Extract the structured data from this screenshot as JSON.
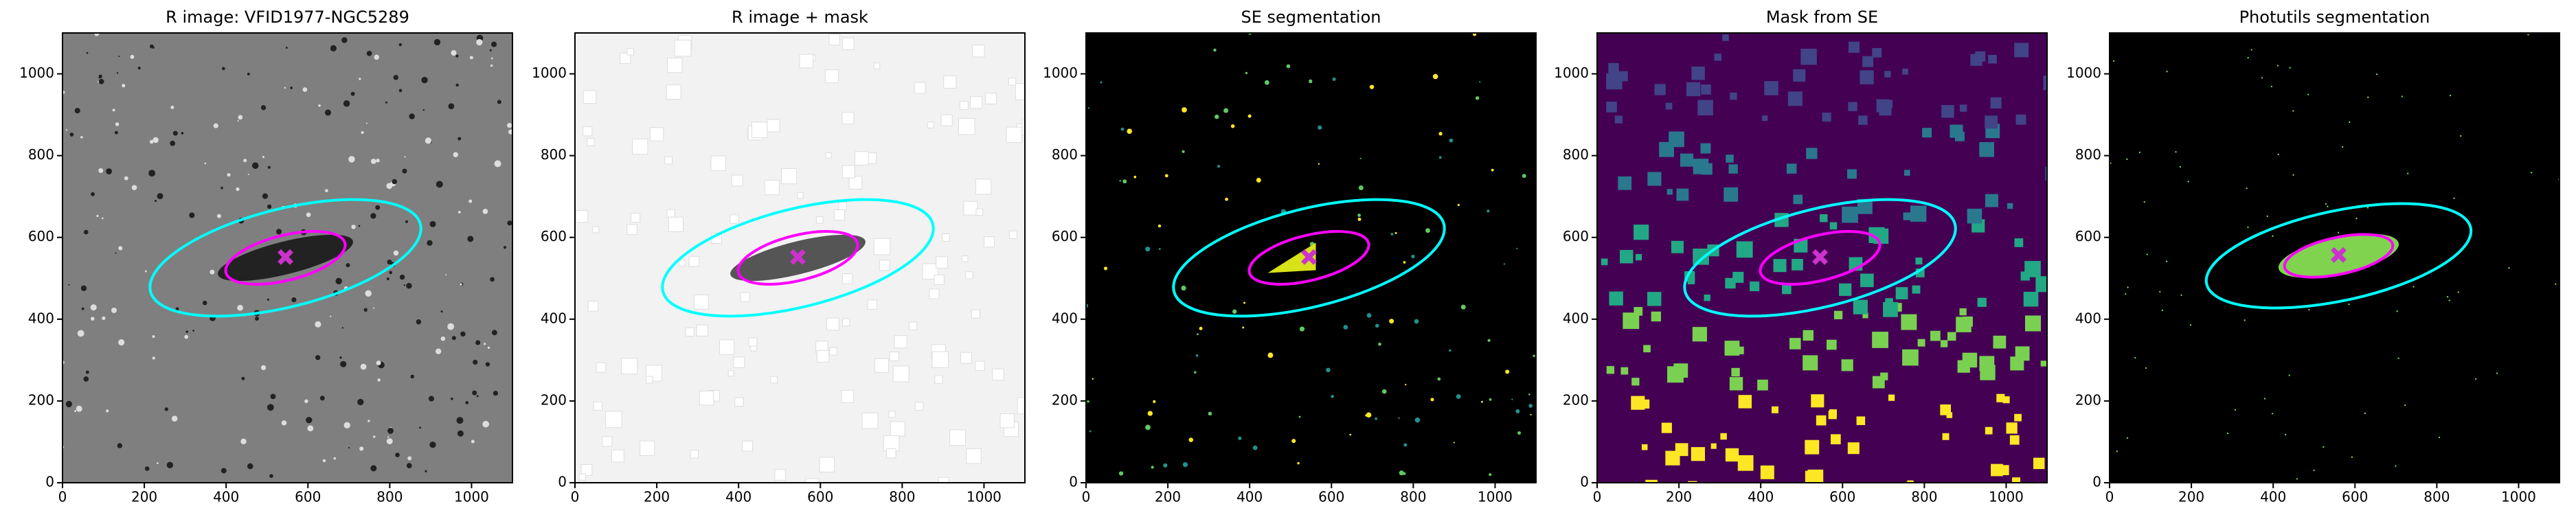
{
  "chart_data": [
    {
      "type": "image",
      "title": "R image: VFID1977-NGC5289",
      "background": "#7f7f7f",
      "xlim": [
        0,
        1100
      ],
      "ylim": [
        0,
        1100
      ],
      "xticks": [
        0,
        200,
        400,
        600,
        800,
        1000
      ],
      "yticks": [
        0,
        200,
        400,
        600,
        800,
        1000
      ],
      "ellipses": [
        {
          "x": 545,
          "y": 550,
          "a": 340,
          "b": 120,
          "angle": 14,
          "color": "#00ffff"
        },
        {
          "x": 545,
          "y": 550,
          "a": 150,
          "b": 55,
          "angle": 14,
          "color": "#ff00ff"
        }
      ],
      "marker": {
        "x": 545,
        "y": 552,
        "color": "#cc33cc"
      }
    },
    {
      "type": "image",
      "title": "R image + mask",
      "background": "#f2f2f2",
      "xlim": [
        0,
        1100
      ],
      "ylim": [
        0,
        1100
      ],
      "xticks": [
        0,
        200,
        400,
        600,
        800,
        1000
      ],
      "yticks": [
        0,
        200,
        400,
        600,
        800,
        1000
      ],
      "ellipses": [
        {
          "x": 545,
          "y": 550,
          "a": 340,
          "b": 120,
          "angle": 14,
          "color": "#00ffff"
        },
        {
          "x": 545,
          "y": 550,
          "a": 150,
          "b": 55,
          "angle": 14,
          "color": "#ff00ff"
        }
      ],
      "marker": {
        "x": 545,
        "y": 552,
        "color": "#cc33cc"
      }
    },
    {
      "type": "image",
      "title": "SE segmentation",
      "background": "#000000",
      "xlim": [
        0,
        1100
      ],
      "ylim": [
        0,
        1100
      ],
      "xticks": [
        0,
        200,
        400,
        600,
        800,
        1000
      ],
      "yticks": [
        0,
        200,
        400,
        600,
        800,
        1000
      ],
      "ellipses": [
        {
          "x": 545,
          "y": 550,
          "a": 340,
          "b": 120,
          "angle": 14,
          "color": "#00ffff"
        },
        {
          "x": 545,
          "y": 550,
          "a": 150,
          "b": 55,
          "angle": 14,
          "color": "#ff00ff"
        }
      ],
      "marker": {
        "x": 545,
        "y": 552,
        "color": "#cc33cc"
      }
    },
    {
      "type": "image",
      "title": "Mask from SE",
      "background": "#440154",
      "xlim": [
        0,
        1100
      ],
      "ylim": [
        0,
        1100
      ],
      "xticks": [
        0,
        200,
        400,
        600,
        800,
        1000
      ],
      "yticks": [
        0,
        200,
        400,
        600,
        800,
        1000
      ],
      "ellipses": [
        {
          "x": 545,
          "y": 550,
          "a": 340,
          "b": 120,
          "angle": 14,
          "color": "#00ffff"
        },
        {
          "x": 545,
          "y": 550,
          "a": 150,
          "b": 55,
          "angle": 14,
          "color": "#ff00ff"
        }
      ],
      "marker": {
        "x": 545,
        "y": 552,
        "color": "#cc33cc"
      }
    },
    {
      "type": "image",
      "title": "Photutils segmentation",
      "background": "#000000",
      "xlim": [
        0,
        1100
      ],
      "ylim": [
        0,
        1100
      ],
      "xticks": [
        0,
        200,
        400,
        600,
        800,
        1000
      ],
      "yticks": [
        0,
        200,
        400,
        600,
        800,
        1000
      ],
      "ellipses": [
        {
          "x": 560,
          "y": 555,
          "a": 330,
          "b": 110,
          "angle": 12,
          "color": "#00ffff"
        },
        {
          "x": 560,
          "y": 555,
          "a": 135,
          "b": 45,
          "angle": 12,
          "color": "#ff00ff"
        }
      ],
      "marker": {
        "x": 560,
        "y": 557,
        "color": "#cc33cc"
      }
    }
  ]
}
